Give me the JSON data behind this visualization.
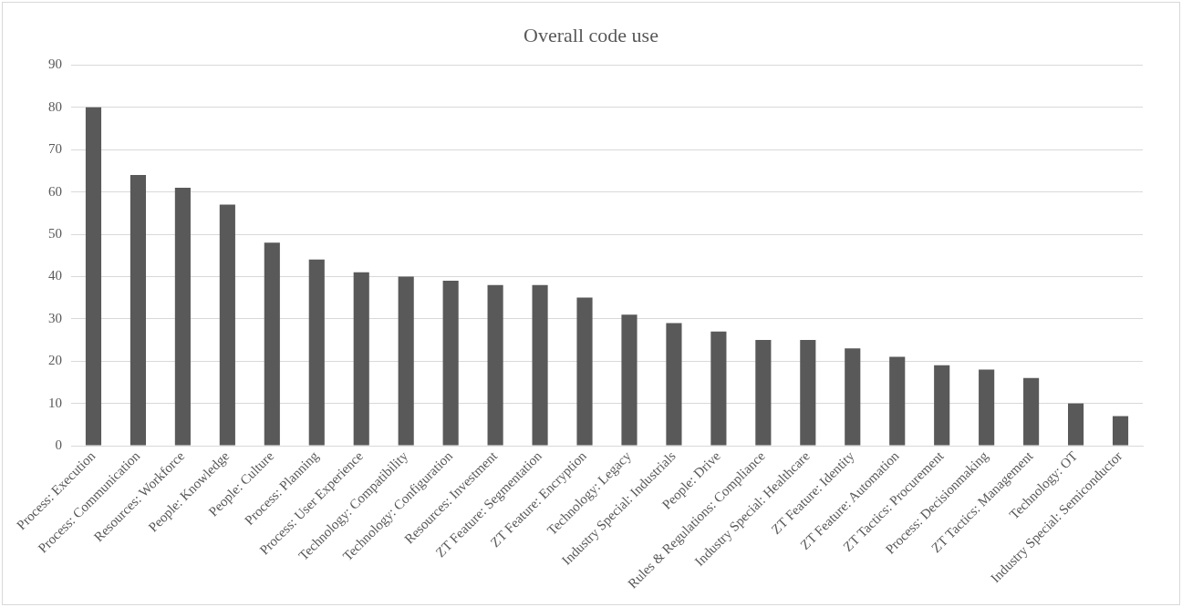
{
  "chart_data": {
    "type": "bar",
    "title": "Overall code use",
    "categories": [
      "Process: Execution",
      "Process: Communication",
      "Resources: Workforce",
      "People: Knowledge",
      "People: Culture",
      "Process: Planning",
      "Process: User Experience",
      "Technology: Compatibility",
      "Technology: Configuration",
      "Resources: Investment",
      "ZT Feature: Segmentation",
      "ZT Feature: Encryption",
      "Technology: Legacy",
      "Industry Special: Industrials",
      "People: Drive",
      "Rules & Regulations: Compliance",
      "Industry Special: Healthcare",
      "ZT Feature: Identity",
      "ZT Feature: Automation",
      "ZT Tactics: Procurement",
      "Process: Decisionmaking",
      "ZT Tactics: Management",
      "Technology: OT",
      "Industry Special: Semiconductor"
    ],
    "values": [
      80,
      64,
      61,
      57,
      48,
      44,
      41,
      40,
      39,
      38,
      38,
      35,
      31,
      29,
      27,
      25,
      25,
      23,
      21,
      19,
      18,
      16,
      10,
      7
    ],
    "color": "#595959",
    "ylim": [
      0,
      90
    ],
    "yticks": [
      0,
      10,
      20,
      30,
      40,
      50,
      60,
      70,
      80,
      90
    ],
    "grid": "y",
    "legend": false
  }
}
